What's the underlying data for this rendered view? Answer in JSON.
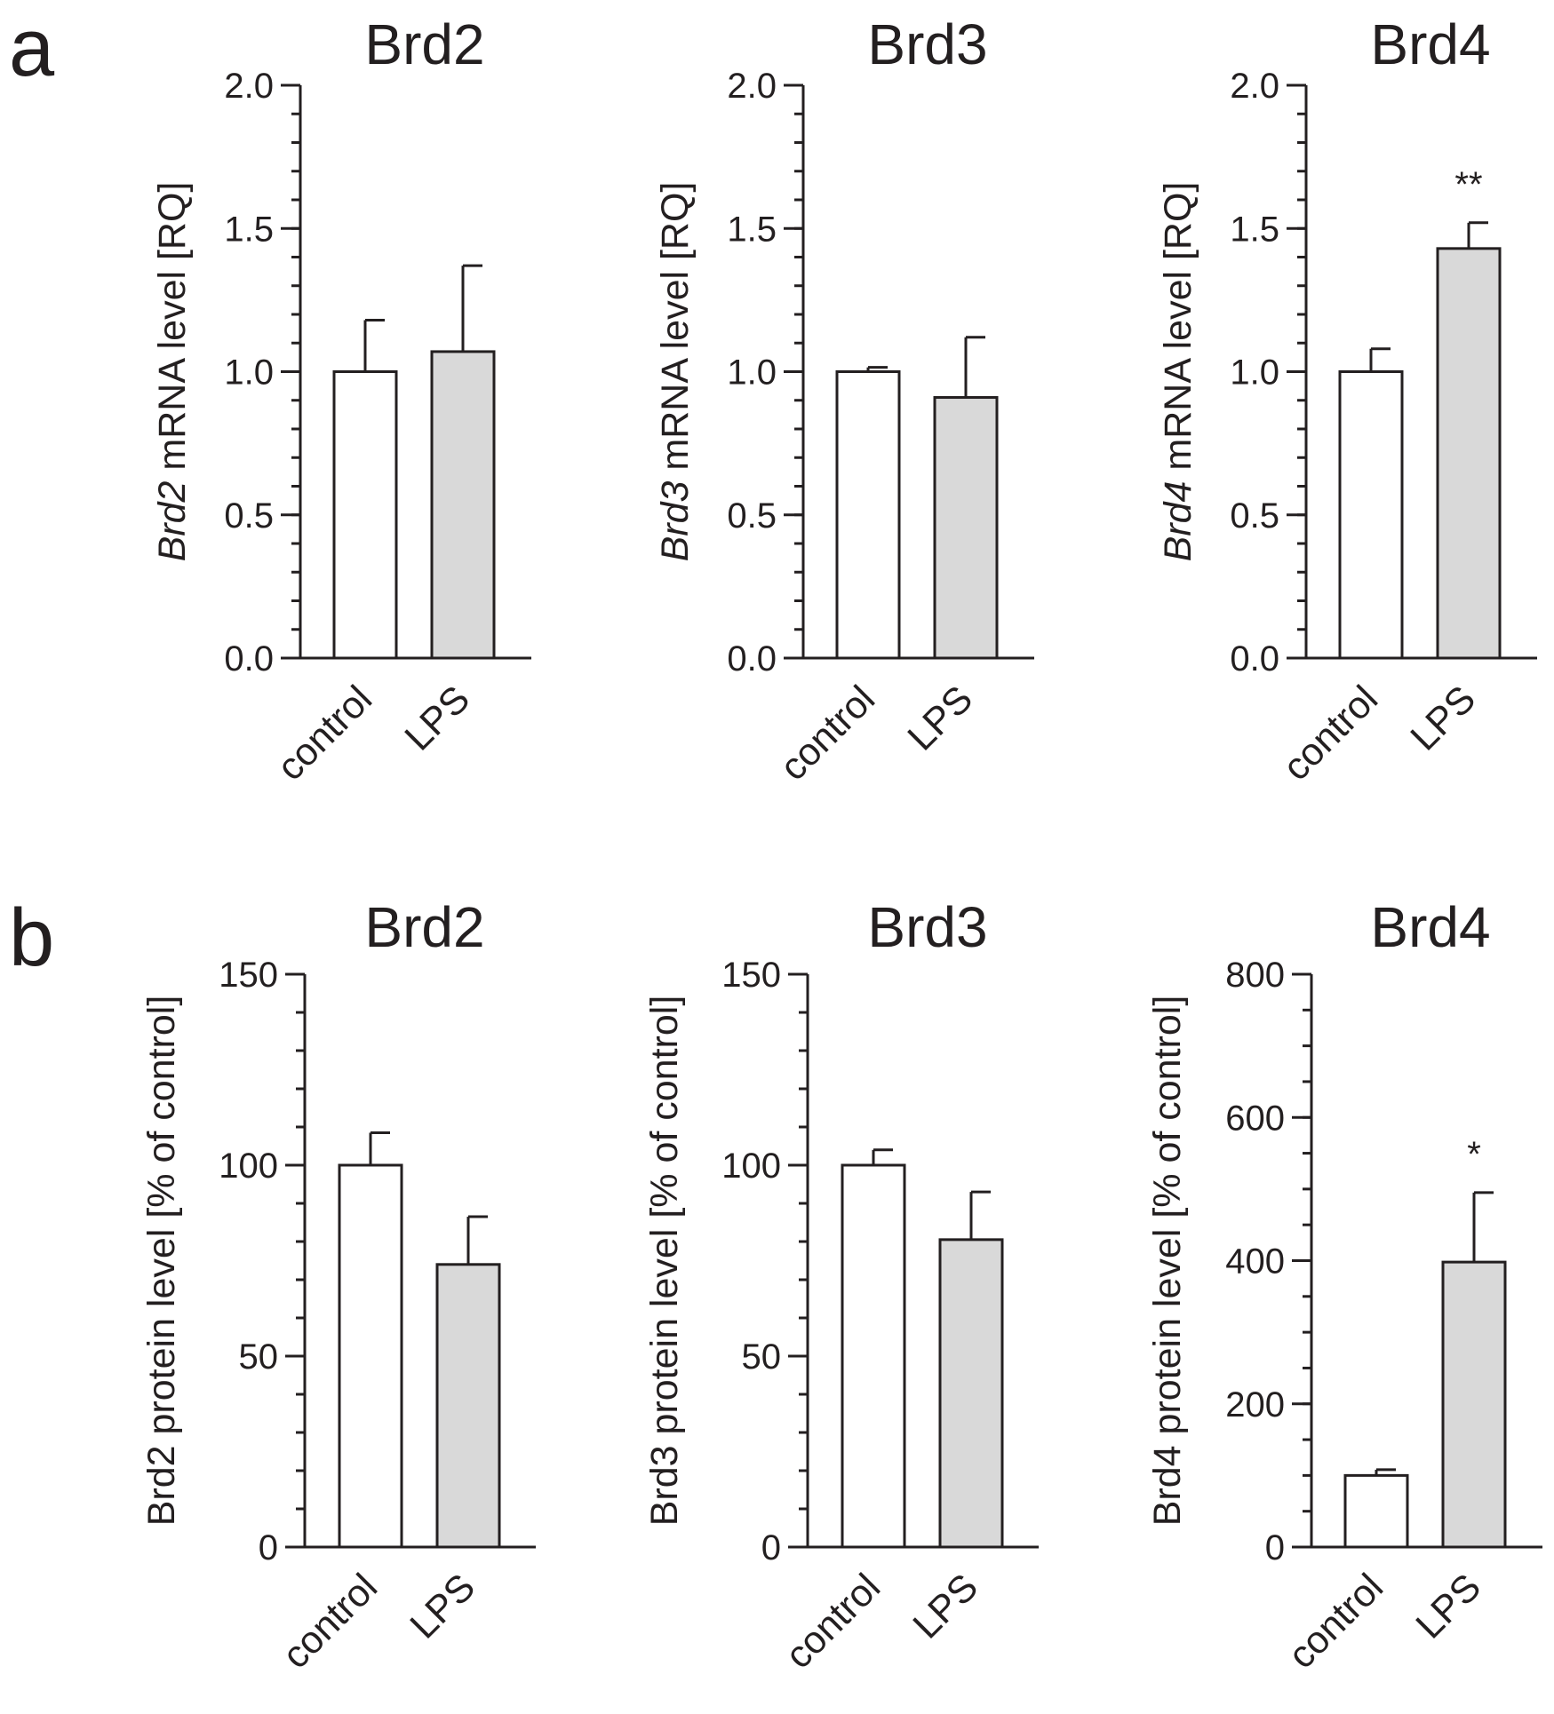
{
  "panels": {
    "a": {
      "label": "a"
    },
    "b": {
      "label": "b"
    }
  },
  "chart_data": [
    {
      "panel": "a",
      "type": "bar",
      "title": "Brd2",
      "ylabel_italic": "Brd2",
      "ylabel": " mRNA level [RQ]",
      "categories": [
        "control",
        "LPS"
      ],
      "values": [
        1.0,
        1.07
      ],
      "errors": [
        0.18,
        0.3
      ],
      "bar_colors": [
        "#ffffff",
        "#d9d9d9"
      ],
      "ylim": [
        0,
        2.0
      ],
      "major_ticks": [
        0,
        0.5,
        1.0,
        1.5,
        2.0
      ],
      "tick_labels": [
        "0.0",
        "0.5",
        "1.0",
        "1.5",
        "2.0"
      ],
      "minor_step": 0.1,
      "significance": [
        "",
        ""
      ]
    },
    {
      "panel": "a",
      "type": "bar",
      "title": "Brd3",
      "ylabel_italic": "Brd3",
      "ylabel": " mRNA level [RQ]",
      "categories": [
        "control",
        "LPS"
      ],
      "values": [
        1.0,
        0.91
      ],
      "errors": [
        0.015,
        0.21
      ],
      "bar_colors": [
        "#ffffff",
        "#d9d9d9"
      ],
      "ylim": [
        0,
        2.0
      ],
      "major_ticks": [
        0,
        0.5,
        1.0,
        1.5,
        2.0
      ],
      "tick_labels": [
        "0.0",
        "0.5",
        "1.0",
        "1.5",
        "2.0"
      ],
      "minor_step": 0.1,
      "significance": [
        "",
        ""
      ]
    },
    {
      "panel": "a",
      "type": "bar",
      "title": "Brd4",
      "ylabel_italic": "Brd4",
      "ylabel": " mRNA level [RQ]",
      "categories": [
        "control",
        "LPS"
      ],
      "values": [
        1.0,
        1.43
      ],
      "errors": [
        0.08,
        0.09
      ],
      "bar_colors": [
        "#ffffff",
        "#d9d9d9"
      ],
      "ylim": [
        0,
        2.0
      ],
      "major_ticks": [
        0,
        0.5,
        1.0,
        1.5,
        2.0
      ],
      "tick_labels": [
        "0.0",
        "0.5",
        "1.0",
        "1.5",
        "2.0"
      ],
      "minor_step": 0.1,
      "significance": [
        "",
        "**"
      ]
    },
    {
      "panel": "b",
      "type": "bar",
      "title": "Brd2",
      "ylabel_italic": "",
      "ylabel": "Brd2 protein level [% of control]",
      "categories": [
        "control",
        "LPS"
      ],
      "values": [
        100,
        74
      ],
      "errors": [
        8.5,
        12.5
      ],
      "bar_colors": [
        "#ffffff",
        "#d9d9d9"
      ],
      "ylim": [
        0,
        150
      ],
      "major_ticks": [
        0,
        50,
        100,
        150
      ],
      "tick_labels": [
        "0",
        "50",
        "100",
        "150"
      ],
      "minor_step": 10,
      "significance": [
        "",
        ""
      ]
    },
    {
      "panel": "b",
      "type": "bar",
      "title": "Brd3",
      "ylabel_italic": "",
      "ylabel": "Brd3 protein level [% of control]",
      "categories": [
        "control",
        "LPS"
      ],
      "values": [
        100,
        80.5
      ],
      "errors": [
        4.0,
        12.5
      ],
      "bar_colors": [
        "#ffffff",
        "#d9d9d9"
      ],
      "ylim": [
        0,
        150
      ],
      "major_ticks": [
        0,
        50,
        100,
        150
      ],
      "tick_labels": [
        "0",
        "50",
        "100",
        "150"
      ],
      "minor_step": 10,
      "significance": [
        "",
        ""
      ]
    },
    {
      "panel": "b",
      "type": "bar",
      "title": "Brd4",
      "ylabel_italic": "",
      "ylabel": "Brd4 protein level [% of control]",
      "categories": [
        "control",
        "LPS"
      ],
      "values": [
        100,
        398
      ],
      "errors": [
        8,
        97
      ],
      "bar_colors": [
        "#ffffff",
        "#d9d9d9"
      ],
      "ylim": [
        0,
        800
      ],
      "major_ticks": [
        0,
        200,
        400,
        600,
        800
      ],
      "tick_labels": [
        "0",
        "200",
        "400",
        "600",
        "800"
      ],
      "minor_step": 50,
      "significance": [
        "",
        "*"
      ]
    }
  ]
}
